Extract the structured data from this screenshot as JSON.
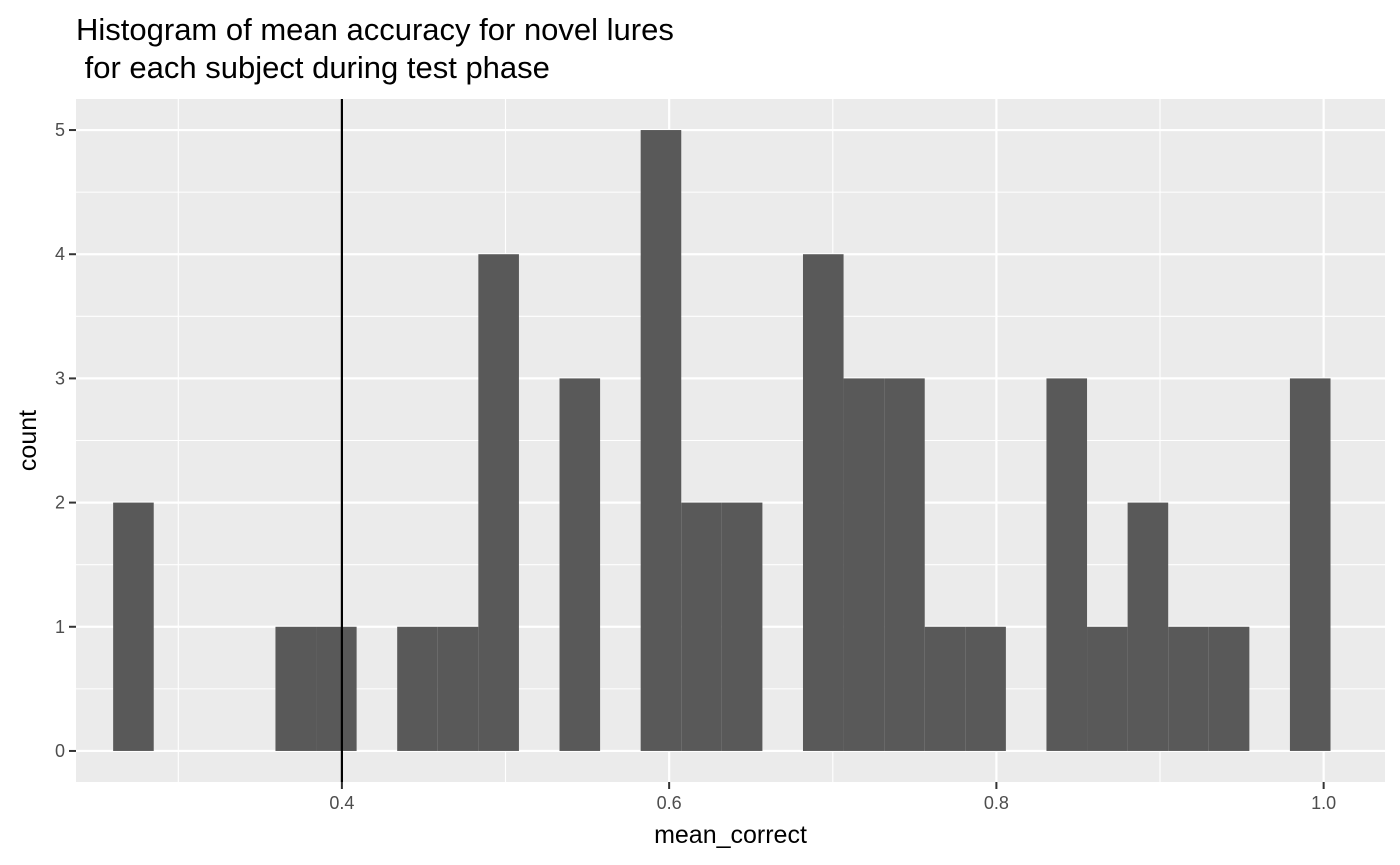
{
  "chart_data": {
    "type": "bar",
    "title": "Histogram of mean accuracy for novel lures\n for each subject during test phase",
    "xlabel": "mean_correct",
    "ylabel": "count",
    "xlim": [
      0.2375,
      1.0375
    ],
    "ylim": [
      -0.25,
      5.25
    ],
    "x_ticks": [
      0.4,
      0.6,
      0.8,
      1.0
    ],
    "x_tick_labels": [
      "0.4",
      "0.6",
      "0.8",
      "1.0"
    ],
    "y_ticks": [
      0,
      1,
      2,
      3,
      4,
      5
    ],
    "y_tick_labels": [
      "0",
      "1",
      "2",
      "3",
      "4",
      "5"
    ],
    "bin_width": 0.0248,
    "bins": [
      {
        "x": 0.2726,
        "count": 2
      },
      {
        "x": 0.3222,
        "count": 0
      },
      {
        "x": 0.347,
        "count": 0
      },
      {
        "x": 0.3718,
        "count": 1
      },
      {
        "x": 0.3966,
        "count": 1
      },
      {
        "x": 0.4214,
        "count": 0
      },
      {
        "x": 0.4462,
        "count": 1
      },
      {
        "x": 0.471,
        "count": 1
      },
      {
        "x": 0.4958,
        "count": 4
      },
      {
        "x": 0.5206,
        "count": 0
      },
      {
        "x": 0.5454,
        "count": 3
      },
      {
        "x": 0.5702,
        "count": 0
      },
      {
        "x": 0.595,
        "count": 5
      },
      {
        "x": 0.6198,
        "count": 2
      },
      {
        "x": 0.6446,
        "count": 2
      },
      {
        "x": 0.6694,
        "count": 0
      },
      {
        "x": 0.6942,
        "count": 4
      },
      {
        "x": 0.719,
        "count": 3
      },
      {
        "x": 0.7438,
        "count": 3
      },
      {
        "x": 0.7686,
        "count": 1
      },
      {
        "x": 0.7934,
        "count": 1
      },
      {
        "x": 0.8182,
        "count": 0
      },
      {
        "x": 0.843,
        "count": 3
      },
      {
        "x": 0.8678,
        "count": 1
      },
      {
        "x": 0.8926,
        "count": 2
      },
      {
        "x": 0.9174,
        "count": 1
      },
      {
        "x": 0.9422,
        "count": 1
      },
      {
        "x": 0.967,
        "count": 0
      },
      {
        "x": 0.9918,
        "count": 3
      }
    ],
    "vline": {
      "x": 0.4,
      "color": "#000000"
    },
    "bar_color": "#595959",
    "panel_background": "#ebebeb",
    "grid": true,
    "legend": "none"
  }
}
